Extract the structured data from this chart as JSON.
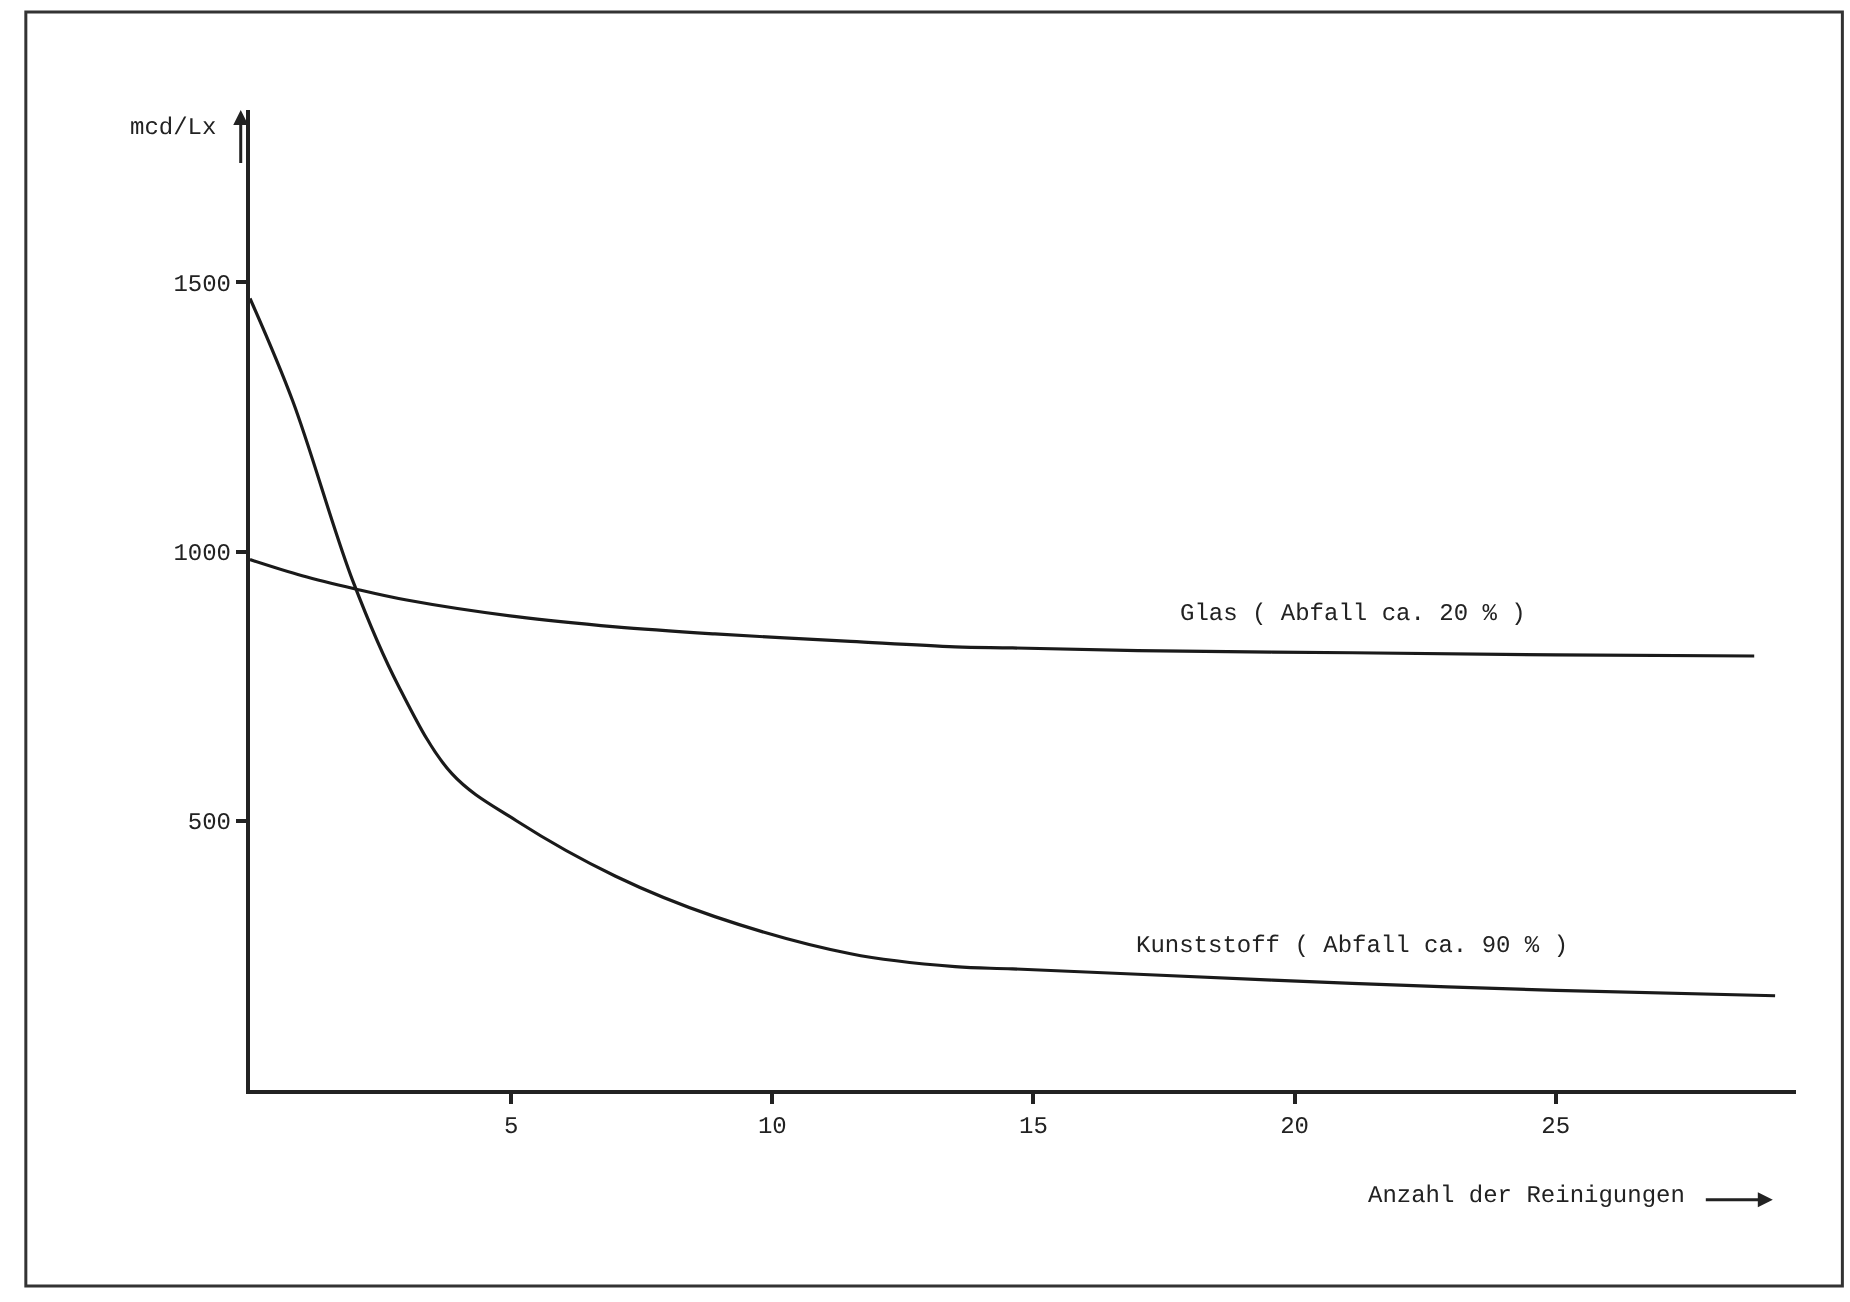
{
  "chart_data": {
    "type": "line",
    "xlabel": "Anzahl der Reinigungen",
    "ylabel": "mcd/Lx",
    "xlim": [
      0,
      29.6
    ],
    "ylim": [
      0,
      1820
    ],
    "xticks": [
      5,
      10,
      15,
      20,
      25
    ],
    "yticks": [
      500,
      1000,
      1500
    ],
    "legend": false,
    "marker": "none",
    "line_style": "solid",
    "series": [
      {
        "name": "Glas ( Abfall ca. 20 % )",
        "color": "#1a1a1a",
        "x": [
          0,
          1,
          2,
          3,
          5.1,
          7,
          8.9,
          11.5,
          13.5,
          14.6,
          17,
          21.1,
          25,
          28.8
        ],
        "values": [
          985,
          955,
          931,
          910,
          879,
          860,
          847,
          833,
          823,
          821,
          816,
          812,
          808,
          806
        ]
      },
      {
        "name": "Kunststoff ( Abfall ca. 90 % )",
        "color": "#1a1a1a",
        "x": [
          0,
          0.82,
          1.97,
          2.85,
          3.87,
          5.1,
          7,
          8.9,
          11.5,
          13.5,
          14.6,
          17,
          21.1,
          25,
          29.2
        ],
        "values": [
          1470,
          1279,
          945,
          749,
          587,
          500,
          397,
          322,
          253,
          229,
          225,
          215,
          198,
          185,
          175
        ]
      }
    ]
  }
}
